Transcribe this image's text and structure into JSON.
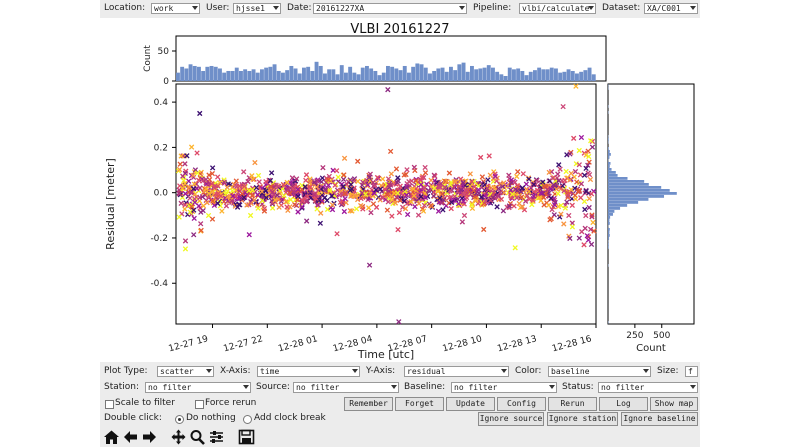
{
  "toolbar": {
    "location_label": "Location:",
    "location_value": "work",
    "user_label": "User:",
    "user_value": "hjsse1",
    "date_label": "Date:",
    "date_value": "20161227XA",
    "pipeline_label": "Pipeline:",
    "pipeline_value": "vlbi/calculate",
    "dataset_label": "Dataset:",
    "dataset_value": "XA/C001"
  },
  "controls": {
    "plot_type_label": "Plot Type:",
    "plot_type_value": "scatter",
    "x_axis_label": "X-Axis:",
    "x_axis_value": "time",
    "y_axis_label": "Y-Axis:",
    "y_axis_value": "residual",
    "color_label": "Color:",
    "color_value": "baseline",
    "size_label": "Size:",
    "size_value": "f",
    "station_label": "Station:",
    "station_value": "no filter",
    "source_label": "Source:",
    "source_value": "no filter",
    "baseline_label": "Baseline:",
    "baseline_value": "no filter",
    "status_label": "Status:",
    "status_value": "no filter",
    "scale_to_filter": "Scale to filter",
    "force_rerun": "Force rerun",
    "double_click_label": "Double click:",
    "do_nothing": "Do nothing",
    "add_clock_break": "Add clock break",
    "buttons": {
      "remember": "Remember",
      "forget": "Forget",
      "update": "Update",
      "config": "Config",
      "rerun": "Rerun",
      "log": "Log",
      "show_map": "Show map",
      "ignore_source": "Ignore source",
      "ignore_station": "Ignore station",
      "ignore_baseline": "Ignore baseline"
    }
  },
  "nav_icons": [
    "home-icon",
    "back-arrow-icon",
    "forward-arrow-icon",
    "pan-icon",
    "zoom-icon",
    "configure-subplots-icon",
    "save-icon"
  ],
  "chart_data": {
    "type": "scatter",
    "title": "VLBI 20161227",
    "xlabel": "Time [utc]",
    "ylabel": "Residual [meter]",
    "x_ticks": [
      "12-27 19",
      "12-27 22",
      "12-28 01",
      "12-28 04",
      "12-28 07",
      "12-28 10",
      "12-28 13",
      "12-28 16"
    ],
    "y_ticks": [
      0.4,
      0.2,
      0.0,
      -0.2,
      -0.4
    ],
    "ylim": [
      -0.58,
      0.48
    ],
    "xlim_hours": [
      17.0,
      40.0
    ],
    "marker": "x",
    "colors": [
      "#3b0f70",
      "#8c2981",
      "#de4968",
      "#cc4778",
      "#f89540",
      "#fdb42f",
      "#b5367a",
      "#e35932",
      "#9c179e",
      "#f0f921"
    ],
    "top_hist": {
      "ylabel": "Count",
      "y_ticks": [
        0,
        50
      ],
      "ylim": [
        0,
        75
      ],
      "color": "#6f8fc9"
    },
    "right_hist": {
      "xlabel": "Count",
      "x_ticks": [
        250,
        500
      ],
      "xlim": [
        0,
        800
      ],
      "color": "#6f8fc9"
    },
    "point_count": 1400
  }
}
